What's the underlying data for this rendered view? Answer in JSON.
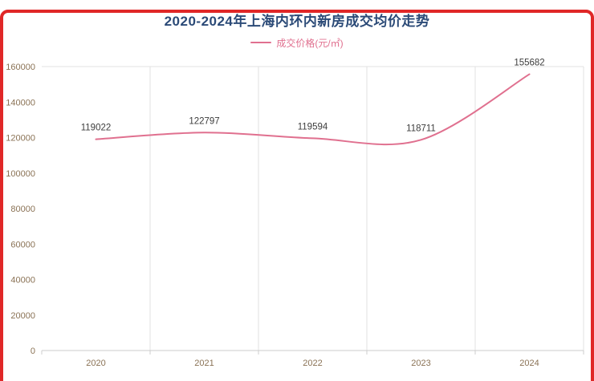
{
  "chart_data": {
    "type": "line",
    "title": "2020-2024年上海内环内新房成交均价走势",
    "categories": [
      "2020",
      "2021",
      "2022",
      "2023",
      "2024"
    ],
    "series": [
      {
        "name": "成交价格(元/㎡)",
        "values": [
          119022,
          122797,
          119594,
          118711,
          155682
        ]
      }
    ],
    "xlabel": "",
    "ylabel": "",
    "ylim": [
      0,
      160000
    ],
    "ytick_step": 20000,
    "grid": "vertical-splitlines",
    "legend_position": "top-center",
    "smooth": true,
    "colors": {
      "line": "#e0708f",
      "value_label": "#3c3c3c",
      "axis_text": "#8a7255",
      "grid_line": "#e2e2e2",
      "axis_line": "#cccccc",
      "title": "#2b4a77",
      "frame_border": "#e02727"
    }
  }
}
